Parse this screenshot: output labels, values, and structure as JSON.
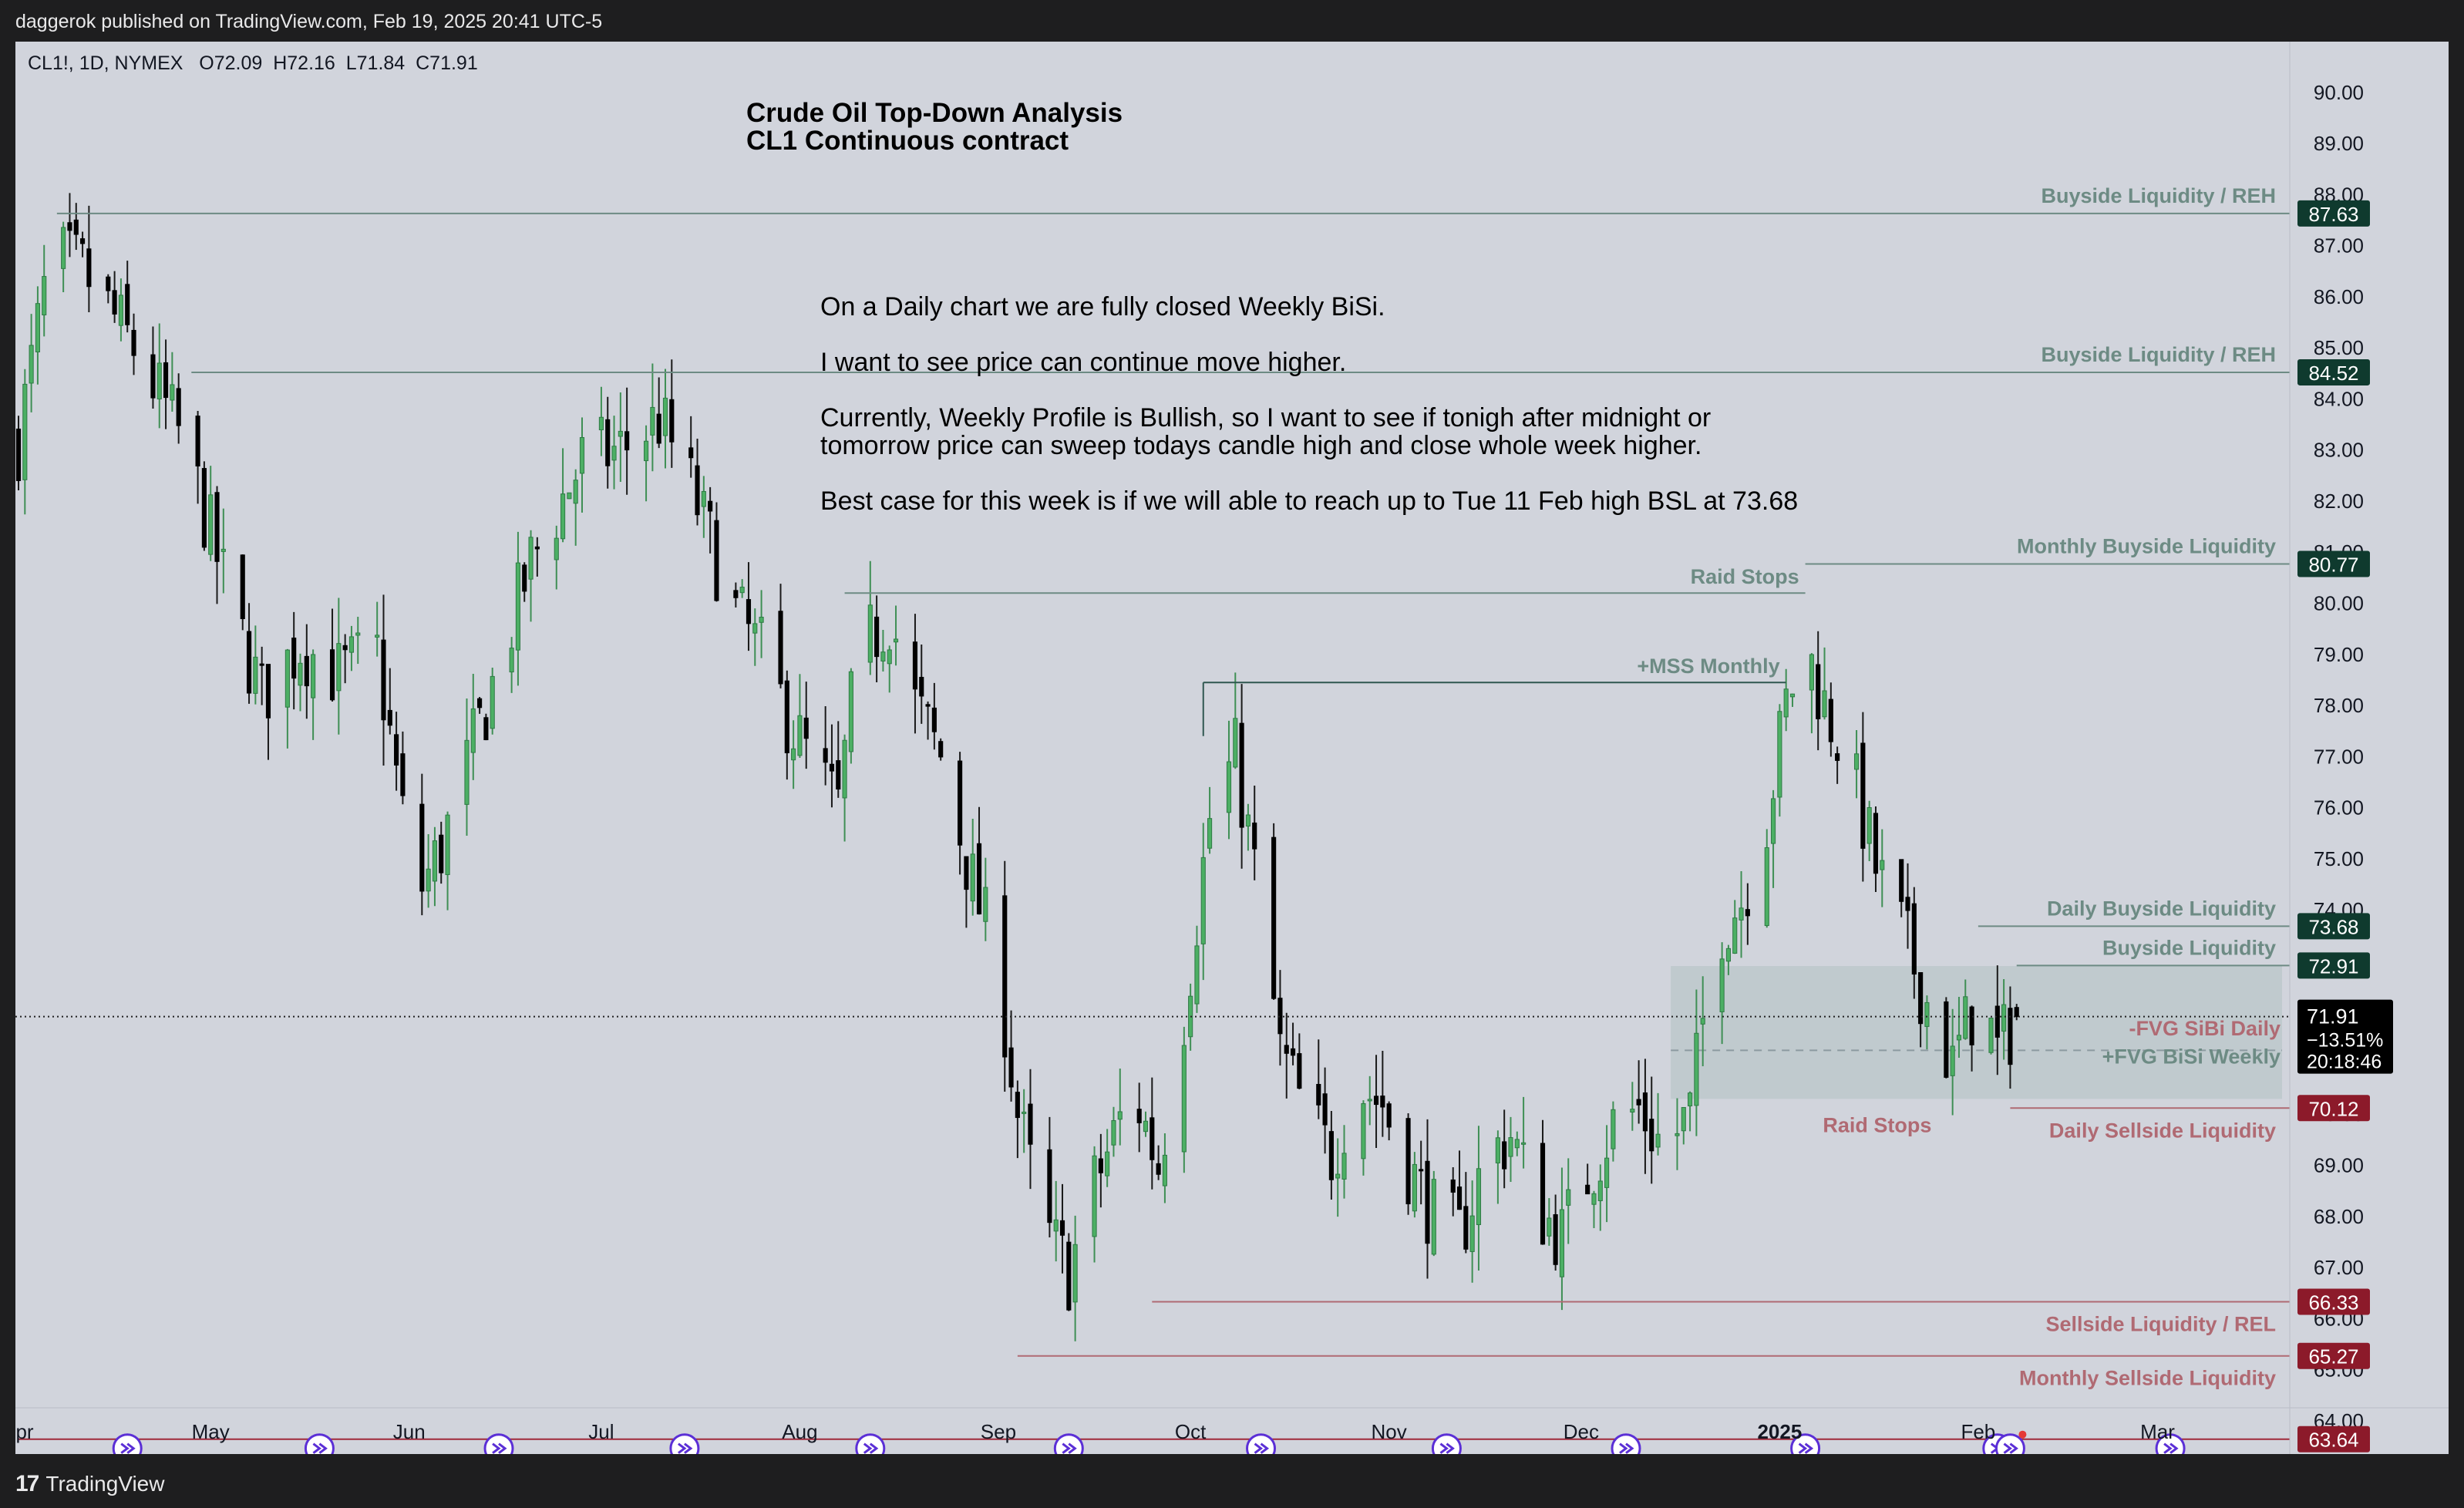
{
  "header": {
    "published": "daggerok published on TradingView.com, Feb 19, 2025 20:41 UTC-5"
  },
  "symbol": {
    "info": "CL1!, 1D, NYMEX",
    "open": "O72.09",
    "high": "H72.16",
    "low": "L71.84",
    "close": "C71.91"
  },
  "title": {
    "line1": "Crude Oil Top-Down Analysis",
    "line2": "CL1 Continuous contract"
  },
  "notes": [
    "On a Daily chart we are fully closed Weekly BiSi.",
    "I want to see price can continue move higher.",
    "Currently, Weekly Profile is Bullish, so I want to see if tonigh after midnight or",
    "tomorrow price can sweep todays candle high and close whole week higher.",
    "Best case for this week is if we will able to reach up to Tue 11 Feb high BSL at 73.68"
  ],
  "footer": {
    "brand": "TradingView"
  },
  "chart_data": {
    "type": "candlestick",
    "ylim": [
      63.5,
      90.6
    ],
    "yticks": [
      "90.00",
      "89.00",
      "88.00",
      "87.00",
      "86.00",
      "85.00",
      "84.00",
      "83.00",
      "82.00",
      "81.00",
      "80.00",
      "79.00",
      "78.00",
      "77.00",
      "76.00",
      "75.00",
      "74.00",
      "73.00",
      "72.00",
      "71.00",
      "70.00",
      "69.00",
      "68.00",
      "67.00",
      "66.00",
      "65.00",
      "64.00"
    ],
    "xticks": [
      {
        "label": "pr",
        "day": 0
      },
      {
        "label": "May",
        "day": 30
      },
      {
        "label": "Jun",
        "day": 61
      },
      {
        "label": "Jul",
        "day": 91
      },
      {
        "label": "Aug",
        "day": 122
      },
      {
        "label": "Sep",
        "day": 153
      },
      {
        "label": "Oct",
        "day": 183
      },
      {
        "label": "Nov",
        "day": 214
      },
      {
        "label": "Dec",
        "day": 244
      },
      {
        "label": "2025",
        "day": 275,
        "bold": true
      },
      {
        "label": "Feb",
        "day": 306
      },
      {
        "label": "Mar",
        "day": 334
      }
    ],
    "x_range_days": [
      0,
      352
    ],
    "colors": {
      "up": "#4caf64",
      "down": "#000000",
      "wick": "#3a3a3a",
      "buy": "#6d8b84",
      "sell": "#b06a73"
    },
    "levels": [
      {
        "label": "Buyside Liquidity / REH",
        "price": 87.63,
        "start_day": 6,
        "kind": "buy",
        "value_label": "87.63"
      },
      {
        "label": "Buyside Liquidity / REH",
        "price": 84.52,
        "start_day": 27,
        "kind": "buy",
        "value_label": "84.52"
      },
      {
        "label": "Monthly Buyside Liquidity",
        "price": 80.77,
        "start_day": 279,
        "kind": "buy",
        "value_label": "80.77"
      },
      {
        "label": "Daily Buyside Liquidity",
        "price": 73.68,
        "start_day": 306,
        "kind": "buy",
        "value_label": "73.68"
      },
      {
        "label": "Buyside Liquidity",
        "price": 72.91,
        "start_day": 312,
        "kind": "buy",
        "value_label": "72.91"
      },
      {
        "label": "Daily Sellside Liquidity",
        "price": 70.12,
        "start_day": 311,
        "kind": "sell",
        "value_label": "70.12"
      },
      {
        "label": "Sellside Liquidity / REL",
        "price": 66.33,
        "start_day": 177,
        "kind": "sell",
        "value_label": "66.33"
      },
      {
        "label": "Monthly Sellside Liquidity",
        "price": 65.27,
        "start_day": 156,
        "kind": "sell",
        "value_label": "65.27"
      },
      {
        "label": "",
        "price": 63.64,
        "start_day": 0,
        "kind": "sell",
        "value_label": "63.64"
      }
    ],
    "segments": [
      {
        "label": "Raid Stops",
        "price": 80.2,
        "start_day": 129,
        "end_day": 279,
        "kind": "buy"
      },
      {
        "label": "+MSS Monthly",
        "price": 78.45,
        "start_day": 185,
        "end_day": 276,
        "kind": "buy"
      }
    ],
    "extra_labels": [
      {
        "label": "Raid Stops",
        "price": 69.8,
        "day": 298,
        "kind": "sell"
      }
    ],
    "fvg_zones": [
      {
        "label": "-FVG SiBi Daily",
        "from": 72.9,
        "to": 70.3,
        "start_day": 258,
        "kind": "sell"
      },
      {
        "label": "+FVG BiSi  Weekly",
        "from": 71.6,
        "to": 71.2,
        "start_day": 312,
        "kind": "buy"
      }
    ],
    "last_price": {
      "value": "71.91",
      "change": "−13.51%",
      "countdown": "20:18:46",
      "price": 71.91
    },
    "event_days": [
      17,
      47,
      75,
      104,
      133,
      164,
      194,
      223,
      251,
      279,
      309,
      311,
      336
    ]
  }
}
